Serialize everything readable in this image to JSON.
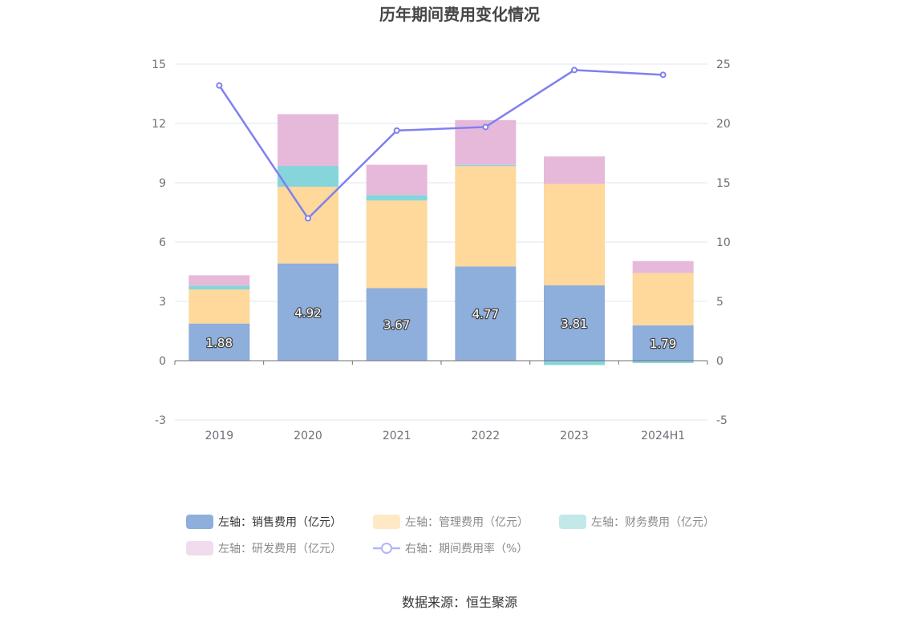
{
  "chart_data": {
    "type": "bar",
    "stacked": true,
    "title": "历年期间费用变化情况",
    "categories": [
      "2019",
      "2020",
      "2021",
      "2022",
      "2023",
      "2024H1"
    ],
    "left_axis": {
      "ylim": [
        -3,
        15
      ],
      "ticks": [
        "15",
        "12",
        "9",
        "6",
        "3",
        "0",
        "-3"
      ]
    },
    "right_axis": {
      "ylim": [
        -5,
        25
      ],
      "ticks": [
        "25",
        "20",
        "15",
        "10",
        "5",
        "0",
        "-5"
      ]
    },
    "grid": true,
    "legend_position": "bottom",
    "series": [
      {
        "name": "左轴：销售费用（亿元）",
        "axis": "left",
        "type": "bar",
        "color": "#8eaedb",
        "values": [
          1.88,
          4.92,
          3.67,
          4.77,
          3.81,
          1.79
        ],
        "labels": [
          "1.88",
          "4.92",
          "3.67",
          "4.77",
          "3.81",
          "1.79"
        ]
      },
      {
        "name": "左轴：管理费用（亿元）",
        "axis": "left",
        "type": "bar",
        "color": "#fed99b",
        "values": [
          1.72,
          3.88,
          4.43,
          5.07,
          5.13,
          2.64
        ]
      },
      {
        "name": "左轴：财务费用（亿元）",
        "axis": "left",
        "type": "bar",
        "color": "#86d5da",
        "values": [
          0.2,
          1.05,
          0.28,
          0.06,
          -0.22,
          -0.12
        ]
      },
      {
        "name": "左轴：研发费用（亿元）",
        "axis": "left",
        "type": "bar",
        "color": "#e6b9db",
        "values": [
          0.52,
          2.62,
          1.53,
          2.27,
          1.39,
          0.61
        ]
      },
      {
        "name": "右轴：期间费用率（%）",
        "axis": "right",
        "type": "line",
        "color": "#7f80ef",
        "values": [
          23.2,
          12.0,
          19.4,
          19.7,
          24.5,
          24.1
        ]
      }
    ],
    "source": "数据来源：恒生聚源"
  }
}
